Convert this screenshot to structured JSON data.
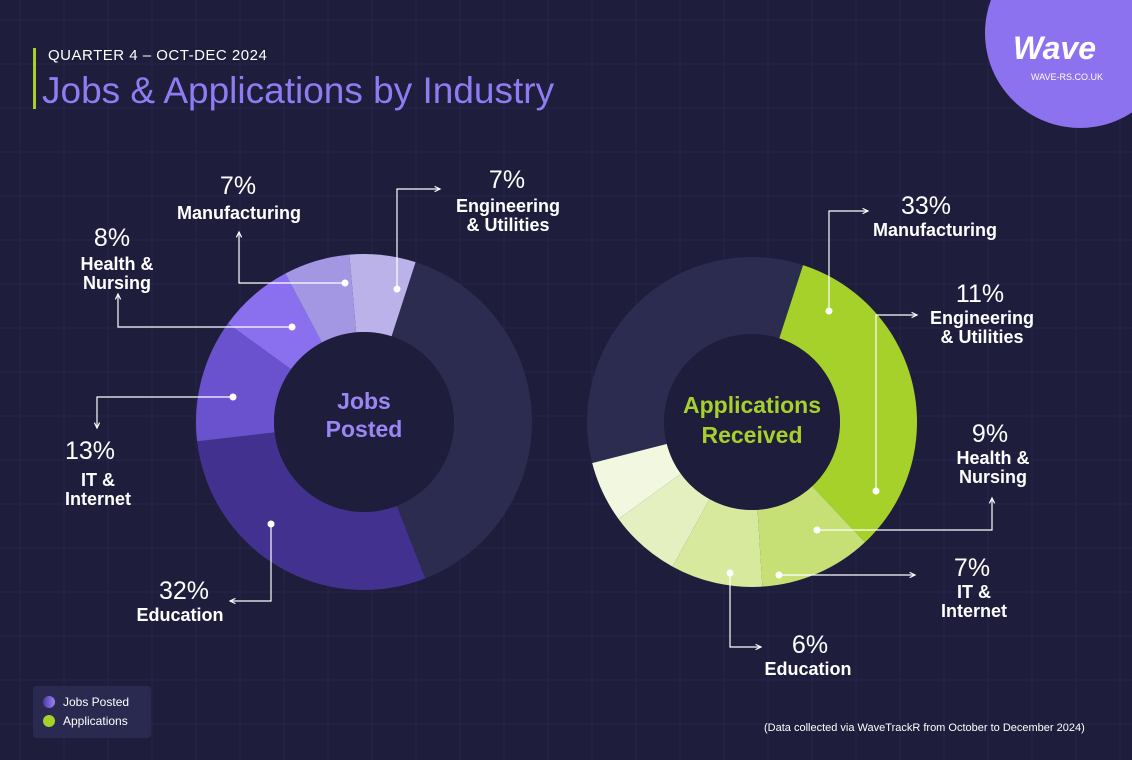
{
  "header": {
    "subtitle": "QUARTER 4 – OCT-DEC 2024",
    "title": "Jobs & Applications by Industry"
  },
  "logo": {
    "word": "Wave",
    "url": "WAVE-RS.CO.UK"
  },
  "legend": {
    "items": [
      {
        "label": "Jobs Posted",
        "color": "#7a5ee6"
      },
      {
        "label": "Applications",
        "color": "#a6d12a"
      }
    ]
  },
  "source_note": "(Data collected via WaveTrackR from October to December 2024)",
  "colors": {
    "background": "#1e1d3c",
    "remainder": "#2c2b50",
    "jobs_accent": "#9a86f5",
    "apps_accent": "#a6d12a"
  },
  "chart_data": [
    {
      "type": "pie",
      "center_label": [
        "Jobs",
        "Posted"
      ],
      "slices": [
        {
          "pct_label": "7%",
          "value": 7,
          "label": [
            "Engineering",
            "& Utilities"
          ],
          "color": "#bcb2ea"
        },
        {
          "pct_label": "",
          "value": 43,
          "label": [],
          "color": "#2c2b50"
        },
        {
          "pct_label": "32%",
          "value": 32,
          "label": [
            "Education"
          ],
          "color": "#43318f"
        },
        {
          "pct_label": "13%",
          "value": 13,
          "label": [
            "IT &",
            "Internet"
          ],
          "color": "#6a52cf"
        },
        {
          "pct_label": "8%",
          "value": 8,
          "label": [
            "Health &",
            "Nursing"
          ],
          "color": "#8a70ee"
        },
        {
          "pct_label": "7%",
          "value": 7,
          "label": [
            "Manufacturing"
          ],
          "color": "#a397e3"
        }
      ]
    },
    {
      "type": "pie",
      "center_label": [
        "Applications",
        "Received"
      ],
      "slices": [
        {
          "pct_label": "33%",
          "value": 33,
          "label": [
            "Manufacturing"
          ],
          "color": "#a6d12a"
        },
        {
          "pct_label": "11%",
          "value": 11,
          "label": [
            "Engineering",
            "& Utilities"
          ],
          "color": "#c6e076"
        },
        {
          "pct_label": "9%",
          "value": 9,
          "label": [
            "Health &",
            "Nursing"
          ],
          "color": "#d6e99c"
        },
        {
          "pct_label": "7%",
          "value": 7,
          "label": [
            "IT &",
            "Internet"
          ],
          "color": "#e4f0bf"
        },
        {
          "pct_label": "6%",
          "value": 6,
          "label": [
            "Education"
          ],
          "color": "#f2f8df"
        },
        {
          "pct_label": "",
          "value": 34,
          "label": [],
          "color": "#2c2b50"
        }
      ]
    }
  ]
}
